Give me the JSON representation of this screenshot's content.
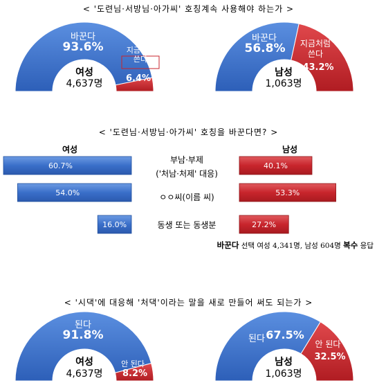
{
  "colors": {
    "blue": "#3a6fc9",
    "blue_dark": "#1f4f9e",
    "red": "#c8252c",
    "red_dark": "#8e1418"
  },
  "q1": {
    "title": "< '도련님·서방님·아가씨' 호칭계속 사용해야 하는가 >",
    "female": {
      "gender": "여성",
      "count": "4,637명",
      "main_label": "바꾼다",
      "main_value": "93.6%",
      "minor_label_1": "지금처럼",
      "minor_label_2": "쓴다",
      "minor_value": "6.4%"
    },
    "male": {
      "gender": "남성",
      "count": "1,063명",
      "main_label": "바꾼다",
      "main_value": "56.8%",
      "minor_label_1": "지금처럼",
      "minor_label_2": "쓴다",
      "minor_value": "43.2%"
    }
  },
  "q2": {
    "title": "<  '도련님·서방님·아가씨' 호칭을 바꾼다면? >",
    "female_header": "여성",
    "male_header": "남성",
    "rows": [
      {
        "label_1": "부남·부제",
        "label_2": "('처남·처제' 대응)",
        "female_value": "60.7%",
        "male_value": "40.1%"
      },
      {
        "label_1": "ㅇㅇ씨(이름 씨)",
        "label_2": "",
        "female_value": "54.0%",
        "male_value": "53.3%"
      },
      {
        "label_1": "동생 또는 동생분",
        "label_2": "",
        "female_value": "16.0%",
        "male_value": "27.2%"
      }
    ],
    "note_bold_1": "바꾼다",
    "note_text": " 선택 여성 4,341명, 남성 604명 ",
    "note_bold_2": "복수",
    "note_tail": " 응답"
  },
  "q3": {
    "title": "< '시댁'에 대응해 '처댁'이라는 말을 새로 만들어 써도 되는가 >",
    "female": {
      "gender": "여성",
      "count": "4,637명",
      "main_label": "된다",
      "main_value": "91.8%",
      "minor_label": "안 된다",
      "minor_value": "8.2%"
    },
    "male": {
      "gender": "남성",
      "count": "1,063명",
      "main_label": "된다",
      "main_value": "67.5%",
      "minor_label": "안 된다",
      "minor_value": "32.5%"
    }
  },
  "chart_data": [
    {
      "type": "pie",
      "title": "< '도련님·서방님·아가씨' 호칭계속 사용해야 하는가 >",
      "subset": "여성 4,637명",
      "categories": [
        "바꾼다",
        "지금처럼 쓴다"
      ],
      "values": [
        93.6,
        6.4
      ]
    },
    {
      "type": "pie",
      "title": "< '도련님·서방님·아가씨' 호칭계속 사용해야 하는가 >",
      "subset": "남성 1,063명",
      "categories": [
        "바꾼다",
        "지금처럼 쓴다"
      ],
      "values": [
        56.8,
        43.2
      ]
    },
    {
      "type": "bar",
      "title": "<  '도련님·서방님·아가씨' 호칭을 바꾼다면? >",
      "categories": [
        "부남·부제 ('처남·처제' 대응)",
        "ㅇㅇ씨(이름 씨)",
        "동생 또는 동생분"
      ],
      "series": [
        {
          "name": "여성",
          "values": [
            60.7,
            54.0,
            16.0
          ]
        },
        {
          "name": "남성",
          "values": [
            40.1,
            53.3,
            27.2
          ]
        }
      ]
    },
    {
      "type": "pie",
      "title": "< '시댁'에 대응해 '처댁'이라는 말을 새로 만들어 써도 되는가 >",
      "subset": "여성 4,637명",
      "categories": [
        "된다",
        "안 된다"
      ],
      "values": [
        91.8,
        8.2
      ]
    },
    {
      "type": "pie",
      "title": "< '시댁'에 대응해 '처댁'이라는 말을 새로 만들어 써도 되는가 >",
      "subset": "남성 1,063명",
      "categories": [
        "된다",
        "안 된다"
      ],
      "values": [
        67.5,
        32.5
      ]
    }
  ]
}
